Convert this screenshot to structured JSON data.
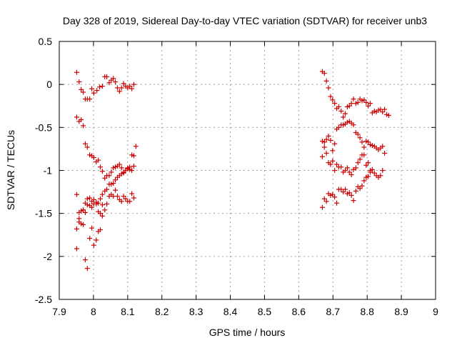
{
  "chart_data": {
    "type": "scatter",
    "title": "Day 328 of 2019, Sidereal Day-to-day VTEC variation (SDTVAR) for receiver unb3",
    "xlabel": "GPS time / hours",
    "ylabel": "SDTVAR / TECUs",
    "xlim": [
      7.9,
      9.0
    ],
    "ylim": [
      -2.5,
      0.5
    ],
    "xticks": [
      "7.9",
      "8",
      "8.1",
      "8.2",
      "8.3",
      "8.4",
      "8.5",
      "8.6",
      "8.7",
      "8.8",
      "8.9",
      "9"
    ],
    "yticks": [
      "0.5",
      "0",
      "-0.5",
      "-1",
      "-1.5",
      "-2",
      "-2.5"
    ],
    "grid": true,
    "marker": "plus",
    "series": [
      {
        "name": "SDTVAR",
        "color": "#cc0000",
        "points": [
          [
            7.951,
            0.14
          ],
          [
            7.958,
            0.03
          ],
          [
            7.964,
            -0.06
          ],
          [
            7.97,
            -0.09
          ],
          [
            7.976,
            -0.17
          ],
          [
            7.982,
            -0.17
          ],
          [
            7.989,
            -0.17
          ],
          [
            7.995,
            -0.05
          ],
          [
            8.001,
            -0.1
          ],
          [
            8.01,
            -0.07
          ],
          [
            8.018,
            -0.03
          ],
          [
            8.026,
            -0.02
          ],
          [
            8.033,
            0.09
          ],
          [
            8.039,
            0.09
          ],
          [
            8.046,
            0.02
          ],
          [
            8.052,
            0.05
          ],
          [
            8.058,
            0.07
          ],
          [
            8.064,
            0.03
          ],
          [
            8.07,
            -0.04
          ],
          [
            8.076,
            -0.08
          ],
          [
            8.082,
            -0.04
          ],
          [
            8.088,
            0.01
          ],
          [
            8.094,
            -0.02
          ],
          [
            8.1,
            -0.04
          ],
          [
            8.106,
            -0.02
          ],
          [
            8.112,
            -0.05
          ],
          [
            8.118,
            0.0
          ],
          [
            7.951,
            -0.38
          ],
          [
            7.958,
            -0.43
          ],
          [
            7.964,
            -0.41
          ],
          [
            7.97,
            -0.48
          ],
          [
            7.976,
            -0.69
          ],
          [
            7.982,
            -0.73
          ],
          [
            7.989,
            -0.82
          ],
          [
            7.995,
            -0.83
          ],
          [
            8.001,
            -0.85
          ],
          [
            8.008,
            -0.9
          ],
          [
            8.014,
            -0.88
          ],
          [
            8.02,
            -0.96
          ],
          [
            8.026,
            -1.01
          ],
          [
            8.033,
            -1.09
          ],
          [
            8.039,
            -1.06
          ],
          [
            8.046,
            -1.06
          ],
          [
            8.052,
            -1.02
          ],
          [
            8.058,
            -0.97
          ],
          [
            8.064,
            -0.96
          ],
          [
            8.07,
            -0.95
          ],
          [
            8.076,
            -0.93
          ],
          [
            8.082,
            -0.97
          ],
          [
            8.088,
            -1.03
          ],
          [
            8.094,
            -1.0
          ],
          [
            8.1,
            -0.97
          ],
          [
            8.106,
            -0.96
          ],
          [
            8.112,
            -0.82
          ],
          [
            8.118,
            -0.83
          ],
          [
            8.124,
            -0.72
          ],
          [
            7.951,
            -1.28
          ],
          [
            7.958,
            -1.49
          ],
          [
            7.964,
            -1.47
          ],
          [
            7.97,
            -1.46
          ],
          [
            7.976,
            -1.38
          ],
          [
            7.982,
            -1.33
          ],
          [
            7.989,
            -1.32
          ],
          [
            7.995,
            -1.36
          ],
          [
            8.001,
            -1.34
          ],
          [
            8.008,
            -1.37
          ],
          [
            8.014,
            -1.38
          ],
          [
            8.02,
            -1.33
          ],
          [
            8.026,
            -1.28
          ],
          [
            8.033,
            -1.24
          ],
          [
            8.039,
            -1.22
          ],
          [
            8.046,
            -1.16
          ],
          [
            8.052,
            -1.16
          ],
          [
            8.058,
            -1.15
          ],
          [
            8.064,
            -1.11
          ],
          [
            8.07,
            -1.08
          ],
          [
            8.076,
            -1.06
          ],
          [
            8.082,
            -1.04
          ],
          [
            8.088,
            -1.02
          ],
          [
            8.094,
            -1.0
          ],
          [
            8.1,
            -0.98
          ],
          [
            8.106,
            -0.99
          ],
          [
            8.112,
            -1.0
          ],
          [
            8.118,
            -0.95
          ],
          [
            7.951,
            -1.68
          ],
          [
            7.958,
            -1.6
          ],
          [
            7.964,
            -1.62
          ],
          [
            7.97,
            -1.63
          ],
          [
            7.976,
            -1.49
          ],
          [
            7.982,
            -1.4
          ],
          [
            7.989,
            -1.41
          ],
          [
            7.995,
            -1.43
          ],
          [
            8.001,
            -1.39
          ],
          [
            8.008,
            -1.39
          ],
          [
            8.014,
            -1.48
          ],
          [
            8.02,
            -1.5
          ],
          [
            8.026,
            -1.4
          ],
          [
            8.033,
            -1.46
          ],
          [
            8.039,
            -1.39
          ],
          [
            8.046,
            -1.3
          ],
          [
            8.052,
            -1.28
          ],
          [
            8.058,
            -1.3
          ],
          [
            8.064,
            -1.23
          ],
          [
            8.07,
            -1.3
          ],
          [
            8.076,
            -1.34
          ],
          [
            8.082,
            -1.36
          ],
          [
            8.088,
            -1.3
          ],
          [
            8.094,
            -1.33
          ],
          [
            8.1,
            -1.36
          ],
          [
            8.106,
            -1.36
          ],
          [
            8.112,
            -1.27
          ],
          [
            8.118,
            -1.32
          ],
          [
            7.951,
            -1.91
          ],
          [
            7.958,
            -1.56
          ],
          [
            7.97,
            -1.46
          ],
          [
            7.976,
            -2.04
          ],
          [
            7.982,
            -2.14
          ],
          [
            7.989,
            -1.79
          ],
          [
            7.995,
            -1.67
          ],
          [
            8.001,
            -1.87
          ],
          [
            8.008,
            -1.81
          ],
          [
            8.014,
            -1.71
          ],
          [
            8.02,
            -1.69
          ],
          [
            8.026,
            -1.53
          ],
          [
            8.669,
            0.15
          ],
          [
            8.675,
            0.13
          ],
          [
            8.681,
            0.04
          ],
          [
            8.687,
            -0.04
          ],
          [
            8.693,
            -0.14
          ],
          [
            8.699,
            -0.18
          ],
          [
            8.705,
            -0.22
          ],
          [
            8.711,
            -0.28
          ],
          [
            8.717,
            -0.26
          ],
          [
            8.724,
            -0.31
          ],
          [
            8.73,
            -0.38
          ],
          [
            8.736,
            -0.34
          ],
          [
            8.742,
            -0.26
          ],
          [
            8.748,
            -0.25
          ],
          [
            8.754,
            -0.22
          ],
          [
            8.76,
            -0.17
          ],
          [
            8.767,
            -0.22
          ],
          [
            8.773,
            -0.21
          ],
          [
            8.779,
            -0.17
          ],
          [
            8.785,
            -0.19
          ],
          [
            8.791,
            -0.18
          ],
          [
            8.797,
            -0.21
          ],
          [
            8.803,
            -0.25
          ],
          [
            8.809,
            -0.22
          ],
          [
            8.815,
            -0.33
          ],
          [
            8.821,
            -0.31
          ],
          [
            8.827,
            -0.32
          ],
          [
            8.833,
            -0.3
          ],
          [
            8.839,
            -0.29
          ],
          [
            8.845,
            -0.32
          ],
          [
            8.851,
            -0.29
          ],
          [
            8.857,
            -0.35
          ],
          [
            8.863,
            -0.36
          ],
          [
            8.669,
            -0.66
          ],
          [
            8.675,
            -0.73
          ],
          [
            8.681,
            -0.64
          ],
          [
            8.687,
            -0.6
          ],
          [
            8.693,
            -0.65
          ],
          [
            8.699,
            -0.77
          ],
          [
            8.705,
            -0.69
          ],
          [
            8.711,
            -0.52
          ],
          [
            8.717,
            -0.5
          ],
          [
            8.724,
            -0.47
          ],
          [
            8.73,
            -0.47
          ],
          [
            8.736,
            -0.46
          ],
          [
            8.742,
            -0.44
          ],
          [
            8.748,
            -0.43
          ],
          [
            8.754,
            -0.45
          ],
          [
            8.76,
            -0.47
          ],
          [
            8.767,
            -0.56
          ],
          [
            8.773,
            -0.58
          ],
          [
            8.779,
            -0.62
          ],
          [
            8.785,
            -0.67
          ],
          [
            8.791,
            -0.73
          ],
          [
            8.797,
            -0.66
          ],
          [
            8.803,
            -0.67
          ],
          [
            8.809,
            -0.7
          ],
          [
            8.815,
            -0.71
          ],
          [
            8.821,
            -0.72
          ],
          [
            8.827,
            -0.74
          ],
          [
            8.833,
            -0.76
          ],
          [
            8.839,
            -0.74
          ],
          [
            8.845,
            -0.72
          ],
          [
            8.851,
            -0.8
          ],
          [
            8.669,
            -0.84
          ],
          [
            8.675,
            -0.67
          ],
          [
            8.681,
            -0.8
          ],
          [
            8.687,
            -0.91
          ],
          [
            8.693,
            -0.93
          ],
          [
            8.699,
            -0.89
          ],
          [
            8.705,
            -1.0
          ],
          [
            8.711,
            -0.93
          ],
          [
            8.717,
            -0.96
          ],
          [
            8.724,
            -0.96
          ],
          [
            8.73,
            -1.02
          ],
          [
            8.736,
            -1.0
          ],
          [
            8.742,
            -0.97
          ],
          [
            8.748,
            -1.02
          ],
          [
            8.754,
            -1.05
          ],
          [
            8.76,
            -0.99
          ],
          [
            8.767,
            -0.97
          ],
          [
            8.773,
            -0.91
          ],
          [
            8.779,
            -0.87
          ],
          [
            8.785,
            -0.82
          ],
          [
            8.791,
            -0.82
          ],
          [
            8.797,
            -0.94
          ],
          [
            8.803,
            -0.91
          ],
          [
            8.809,
            -1.0
          ],
          [
            8.815,
            -0.99
          ],
          [
            8.821,
            -1.03
          ],
          [
            8.827,
            -1.06
          ],
          [
            8.833,
            -1.08
          ],
          [
            8.839,
            -1.06
          ],
          [
            8.845,
            -1.0
          ],
          [
            8.669,
            -1.43
          ],
          [
            8.675,
            -1.33
          ],
          [
            8.681,
            -1.36
          ],
          [
            8.687,
            -1.27
          ],
          [
            8.693,
            -1.29
          ],
          [
            8.699,
            -1.28
          ],
          [
            8.705,
            -1.31
          ],
          [
            8.711,
            -1.38
          ],
          [
            8.717,
            -1.22
          ],
          [
            8.724,
            -1.22
          ],
          [
            8.73,
            -1.25
          ],
          [
            8.736,
            -1.22
          ],
          [
            8.742,
            -1.27
          ],
          [
            8.748,
            -1.26
          ],
          [
            8.754,
            -1.29
          ],
          [
            8.76,
            -1.35
          ],
          [
            8.767,
            -1.24
          ],
          [
            8.773,
            -1.19
          ],
          [
            8.779,
            -1.21
          ],
          [
            8.785,
            -1.18
          ],
          [
            8.791,
            -1.12
          ],
          [
            8.797,
            -1.08
          ],
          [
            8.803,
            -1.07
          ],
          [
            8.809,
            -1.02
          ]
        ]
      }
    ]
  }
}
